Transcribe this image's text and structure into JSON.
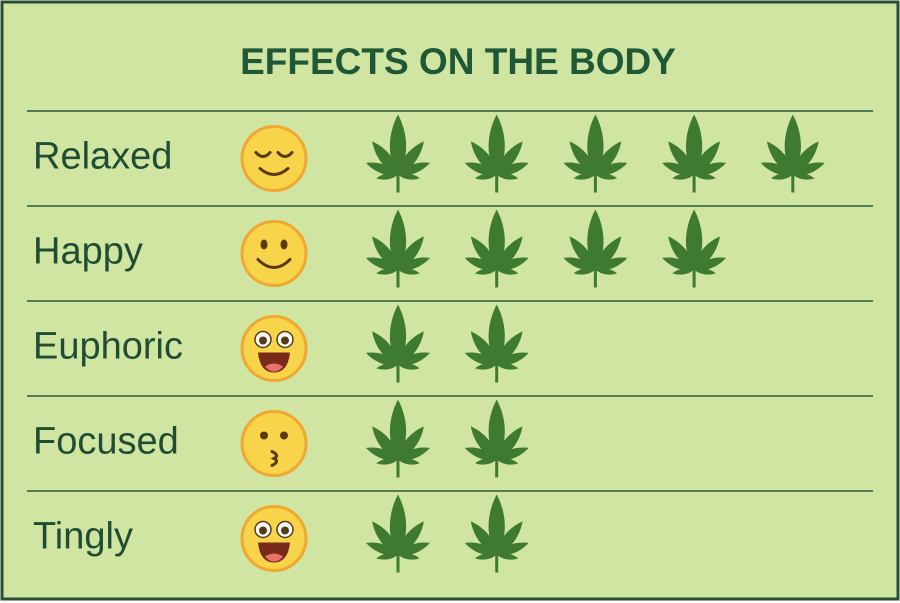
{
  "chart_data": {
    "type": "pictograph",
    "title": "EFFECTS ON THE BODY",
    "categories": [
      "Relaxed",
      "Happy",
      "Euphoric",
      "Focused",
      "Tingly"
    ],
    "values": [
      5,
      4,
      2,
      2,
      2
    ],
    "color": "#3e7a2f"
  }
}
